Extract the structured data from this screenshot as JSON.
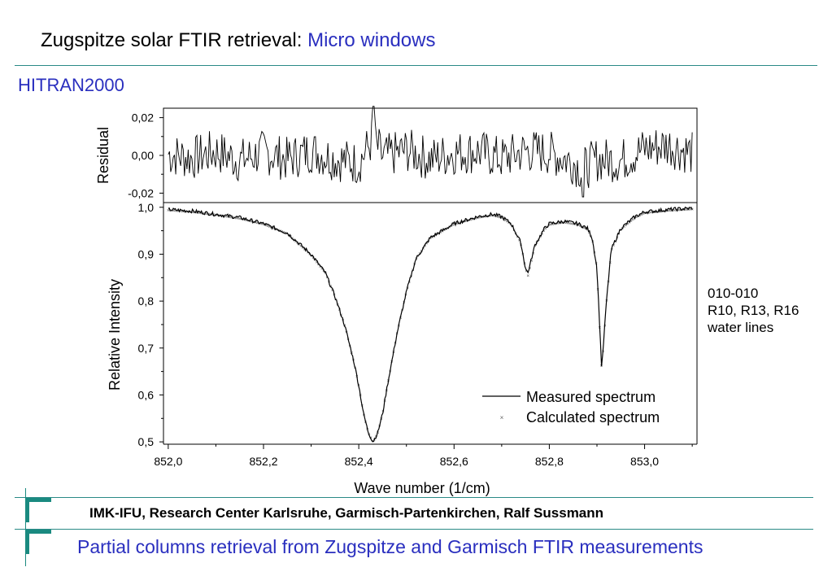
{
  "slide": {
    "title_main": "Zugspitze solar FTIR retrieval: ",
    "title_accent": "Micro windows",
    "section": "HITRAN2000",
    "annotation": [
      "010-010",
      "R10, R13, R16",
      "water lines"
    ],
    "footer_org": "IMK-IFU, Research Center Karlsruhe, Garmisch-Partenkirchen, Ralf Sussmann",
    "footer_subtitle": "Partial columns retrieval from Zugspitze and Garmisch FTIR measurements",
    "colors": {
      "accent_blue": "#2a2fbf",
      "teal_rule": "#2a8a86",
      "teal_bracket": "#1a8a80"
    }
  },
  "chart_data": [
    {
      "type": "line",
      "name": "residual-panel",
      "ylabel": "Residual",
      "ylim": [
        -0.025,
        0.025
      ],
      "yticks": [
        "0,02",
        "0,00",
        "-0,02"
      ],
      "ytick_values": [
        0.02,
        0.0,
        -0.02
      ],
      "note": "high-frequency noise around zero, amplitude about ±0.015 with one spike to ~0.026 near 852.43 and dips to ~-0.022 near 852.87",
      "series": [
        {
          "values_x": [
            852.0,
            852.05,
            852.1,
            852.15,
            852.2,
            852.25,
            852.3,
            852.35,
            852.4,
            852.43,
            852.45,
            852.5,
            852.55,
            852.6,
            852.65,
            852.7,
            852.75,
            852.8,
            852.85,
            852.87,
            852.9,
            852.95,
            853.0,
            853.05,
            853.1
          ],
          "values_y": [
            0.002,
            -0.004,
            0.006,
            -0.008,
            0.005,
            -0.006,
            0.007,
            -0.005,
            -0.012,
            0.026,
            -0.003,
            0.008,
            -0.006,
            0.004,
            0.006,
            -0.005,
            0.007,
            0.004,
            -0.01,
            -0.022,
            -0.006,
            -0.008,
            0.01,
            0.016,
            0.003
          ]
        }
      ]
    },
    {
      "type": "line",
      "name": "spectrum-panel",
      "xlabel": "Wave number  (1/cm)",
      "ylabel": "Relative Intensity",
      "xlim": [
        851.99,
        853.11
      ],
      "ylim": [
        0.495,
        1.01
      ],
      "xticks": [
        "852,0",
        "852,2",
        "852,4",
        "852,6",
        "852,8",
        "853,0"
      ],
      "xtick_values": [
        852.0,
        852.2,
        852.4,
        852.6,
        852.8,
        853.0
      ],
      "yticks": [
        "1,0",
        "0,9",
        "0,8",
        "0,7",
        "0,6",
        "0,5"
      ],
      "ytick_values": [
        1.0,
        0.9,
        0.8,
        0.7,
        0.6,
        0.5
      ],
      "legend": "lower-right",
      "series": [
        {
          "name": "Measured spectrum",
          "style": "solid-line",
          "x": [
            852.0,
            852.05,
            852.1,
            852.15,
            852.2,
            852.25,
            852.3,
            852.33,
            852.35,
            852.37,
            852.39,
            852.4,
            852.41,
            852.42,
            852.43,
            852.44,
            852.45,
            852.46,
            852.48,
            852.5,
            852.52,
            852.55,
            852.6,
            852.65,
            852.68,
            852.7,
            852.72,
            852.74,
            852.75,
            852.755,
            852.77,
            852.79,
            852.8,
            852.83,
            852.86,
            852.88,
            852.89,
            852.9,
            852.91,
            852.92,
            852.93,
            852.95,
            852.98,
            853.0,
            853.05,
            853.1
          ],
          "y": [
            0.995,
            0.992,
            0.985,
            0.978,
            0.965,
            0.945,
            0.9,
            0.86,
            0.81,
            0.75,
            0.67,
            0.62,
            0.56,
            0.52,
            0.5,
            0.52,
            0.56,
            0.62,
            0.73,
            0.82,
            0.89,
            0.935,
            0.965,
            0.98,
            0.985,
            0.98,
            0.965,
            0.925,
            0.87,
            0.86,
            0.92,
            0.955,
            0.965,
            0.97,
            0.965,
            0.955,
            0.935,
            0.87,
            0.655,
            0.8,
            0.91,
            0.955,
            0.98,
            0.99,
            0.995,
            0.998
          ]
        },
        {
          "name": "Calculated spectrum",
          "style": "small-crosses",
          "x": [
            852.0,
            852.05,
            852.1,
            852.15,
            852.2,
            852.25,
            852.3,
            852.33,
            852.35,
            852.37,
            852.39,
            852.4,
            852.41,
            852.42,
            852.43,
            852.44,
            852.45,
            852.46,
            852.48,
            852.5,
            852.52,
            852.55,
            852.6,
            852.65,
            852.68,
            852.7,
            852.72,
            852.74,
            852.75,
            852.755,
            852.77,
            852.79,
            852.8,
            852.83,
            852.86,
            852.88,
            852.89,
            852.9,
            852.91,
            852.92,
            852.93,
            852.95,
            852.98,
            853.0,
            853.05,
            853.1
          ],
          "y": [
            0.996,
            0.992,
            0.986,
            0.978,
            0.966,
            0.946,
            0.9,
            0.862,
            0.812,
            0.752,
            0.672,
            0.622,
            0.562,
            0.522,
            0.502,
            0.522,
            0.562,
            0.622,
            0.732,
            0.822,
            0.892,
            0.936,
            0.966,
            0.98,
            0.985,
            0.98,
            0.966,
            0.926,
            0.872,
            0.855,
            0.92,
            0.955,
            0.965,
            0.97,
            0.965,
            0.955,
            0.936,
            0.872,
            0.65,
            0.8,
            0.91,
            0.955,
            0.98,
            0.99,
            0.995,
            0.998
          ]
        }
      ]
    }
  ]
}
